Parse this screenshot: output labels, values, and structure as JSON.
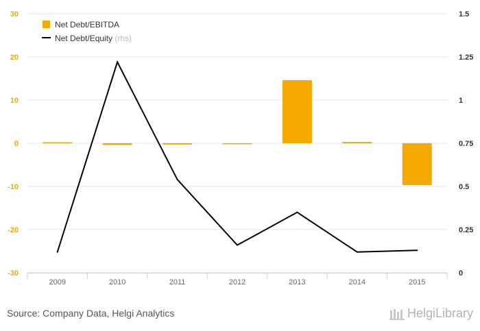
{
  "chart_data": {
    "type": "bar+line",
    "categories": [
      "2009",
      "2010",
      "2011",
      "2012",
      "2013",
      "2014",
      "2015"
    ],
    "series": [
      {
        "name": "Net Debt/EBITDA",
        "type": "bar",
        "axis": "left",
        "color": "#f5a800",
        "values": [
          0.2,
          -0.4,
          -0.3,
          -0.1,
          14.6,
          0.3,
          -9.7
        ]
      },
      {
        "name": "Net Debt/Equity",
        "type": "line",
        "axis": "right",
        "color": "#000000",
        "values": [
          0.12,
          1.22,
          0.54,
          0.16,
          0.35,
          0.12,
          0.13
        ]
      }
    ],
    "legend": {
      "bar_label": "Net Debt/EBITDA",
      "line_label": "Net Debt/Equity",
      "line_suffix": "(rhs)",
      "placement": "top-left"
    },
    "y_left": {
      "range": [
        -30,
        30
      ],
      "ticks": [
        "30",
        "20",
        "10",
        "0",
        "-10",
        "-20",
        "-30"
      ],
      "color": "#f5a800"
    },
    "y_right": {
      "range": [
        0,
        1.5
      ],
      "ticks": [
        "1.5",
        "1.25",
        "1",
        "0.75",
        "0.5",
        "0.25",
        "0"
      ]
    },
    "grid": true
  },
  "footer": {
    "source": "Source: Company Data, Helgi Analytics",
    "logo_text": "HelgiLibrary"
  }
}
